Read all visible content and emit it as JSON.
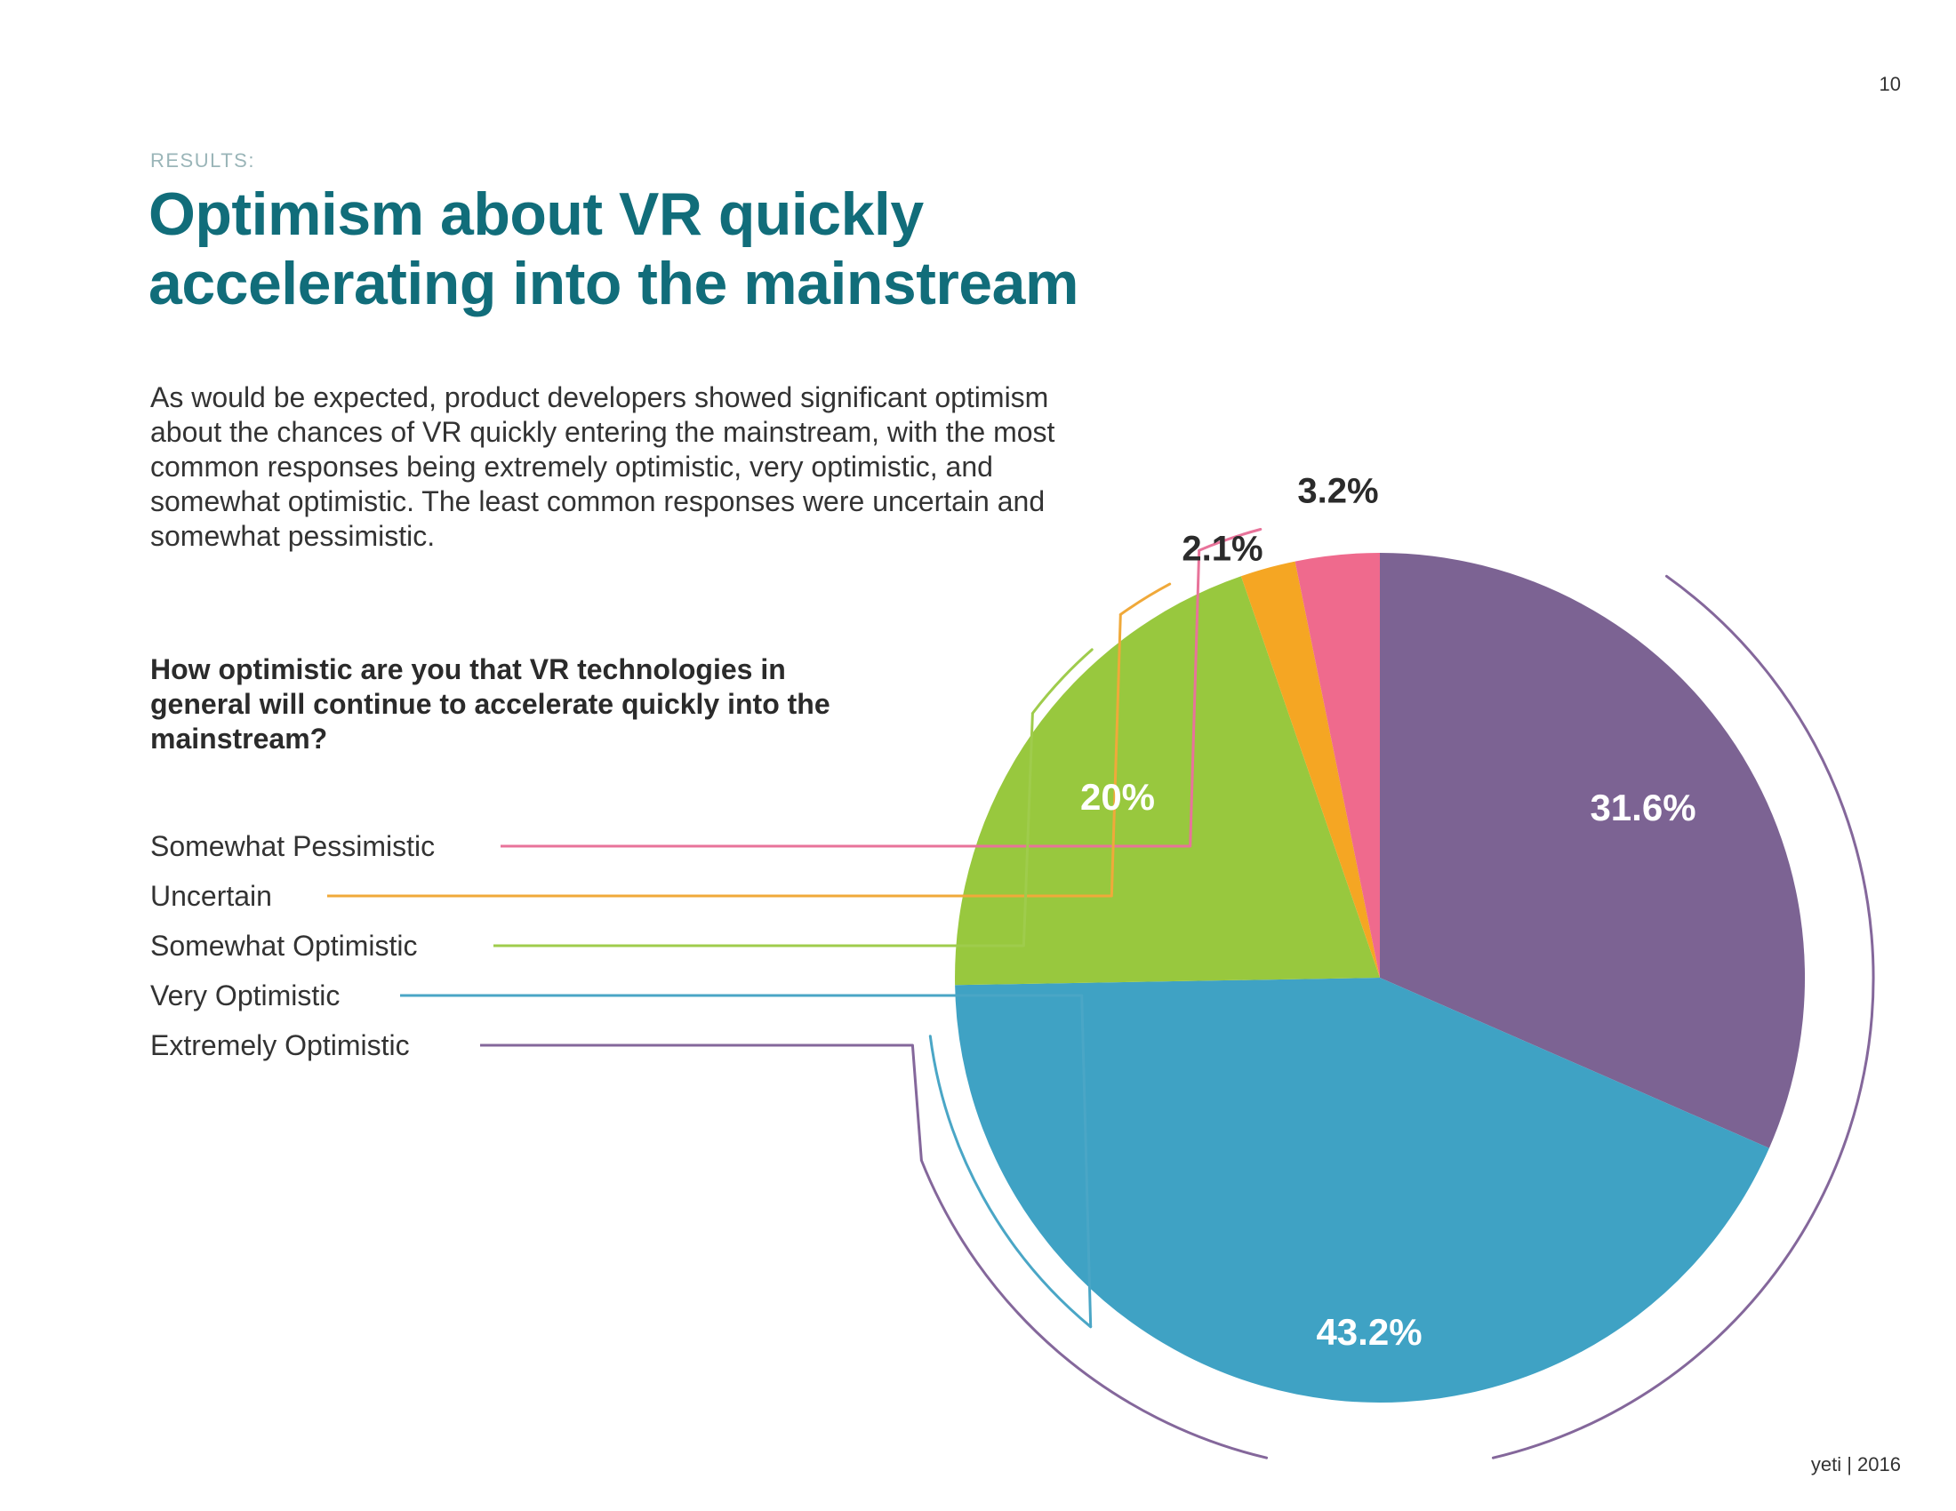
{
  "page": {
    "number": "10",
    "eyebrow": "RESULTS:",
    "title_line1": "Optimism about VR quickly",
    "title_line2": "accelerating into the mainstream",
    "body": "As would be expected, product developers showed significant optimism about the chances of VR quickly entering the mainstream, with the most common responses being extremely optimistic, very optimistic, and somewhat optimistic. The least common responses were uncertain and somewhat pessimistic.",
    "question": "How optimistic are you that VR technologies in general will continue to accelerate quickly into the mainstream?",
    "footer": "yeti | 2016"
  },
  "chart_data": {
    "type": "pie",
    "title": "How optimistic are you that VR technologies in general will continue to accelerate quickly into the mainstream?",
    "legend_position": "left",
    "slices": [
      {
        "label": "Extremely Optimistic",
        "value": 31.6,
        "display": "31.6%",
        "color": "#7c6393",
        "label_color": "#ffffff",
        "label_inside": true
      },
      {
        "label": "Very Optimistic",
        "value": 43.2,
        "display": "43.2%",
        "color": "#3fa2c4",
        "label_color": "#ffffff",
        "label_inside": true
      },
      {
        "label": "Somewhat Optimistic",
        "value": 20.0,
        "display": "20%",
        "color": "#98c83e",
        "label_color": "#ffffff",
        "label_inside": true
      },
      {
        "label": "Uncertain",
        "value": 2.1,
        "display": "2.1%",
        "color": "#f5a623",
        "label_color": "#2b2b2b",
        "label_inside": false
      },
      {
        "label": "Somewhat Pessimistic",
        "value": 3.2,
        "display": "3.2%",
        "color": "#ef6a8d",
        "label_color": "#2b2b2b",
        "label_inside": false
      }
    ],
    "legend": [
      {
        "label": "Somewhat Pessimistic",
        "color": "#e8739a"
      },
      {
        "label": "Uncertain",
        "color": "#f0a93a"
      },
      {
        "label": "Somewhat Optimistic",
        "color": "#9fcc4c"
      },
      {
        "label": "Very Optimistic",
        "color": "#4aa6c6"
      },
      {
        "label": "Extremely Optimistic",
        "color": "#84679b"
      }
    ]
  }
}
